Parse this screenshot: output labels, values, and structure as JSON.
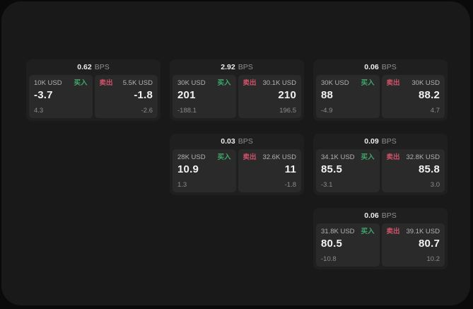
{
  "colors": {
    "window_bg": "#191919",
    "card_bg": "#1f1f1f",
    "panel_bg": "#2a2a2a",
    "buy_green": "#40a86c",
    "sell_red": "#ce5268"
  },
  "cards": [
    {
      "col": 1,
      "row": 1,
      "bps_value": "0.62",
      "bps_unit": "BPS",
      "buy": {
        "size": "10K USD",
        "side_label": "买入",
        "price": "-3.7",
        "delta": "4.3"
      },
      "sell": {
        "side_label": "卖出",
        "size": "5.5K USD",
        "price": "-1.8",
        "delta": "-2.6"
      }
    },
    {
      "col": 2,
      "row": 1,
      "bps_value": "2.92",
      "bps_unit": "BPS",
      "buy": {
        "size": "30K USD",
        "side_label": "买入",
        "price": "201",
        "delta": "-188.1"
      },
      "sell": {
        "side_label": "卖出",
        "size": "30.1K USD",
        "price": "210",
        "delta": "196.5"
      }
    },
    {
      "col": 3,
      "row": 1,
      "bps_value": "0.06",
      "bps_unit": "BPS",
      "buy": {
        "size": "30K USD",
        "side_label": "买入",
        "price": "88",
        "delta": "-4.9"
      },
      "sell": {
        "side_label": "卖出",
        "size": "30K USD",
        "price": "88.2",
        "delta": "4.7"
      }
    },
    {
      "col": 2,
      "row": 2,
      "bps_value": "0.03",
      "bps_unit": "BPS",
      "buy": {
        "size": "28K USD",
        "side_label": "买入",
        "price": "10.9",
        "delta": "1.3"
      },
      "sell": {
        "side_label": "卖出",
        "size": "32.6K USD",
        "price": "11",
        "delta": "-1.8"
      }
    },
    {
      "col": 3,
      "row": 2,
      "bps_value": "0.09",
      "bps_unit": "BPS",
      "buy": {
        "size": "34.1K USD",
        "side_label": "买入",
        "price": "85.5",
        "delta": "-3.1"
      },
      "sell": {
        "side_label": "卖出",
        "size": "32.8K USD",
        "price": "85.8",
        "delta": "3.0"
      }
    },
    {
      "col": 3,
      "row": 3,
      "bps_value": "0.06",
      "bps_unit": "BPS",
      "buy": {
        "size": "31.8K USD",
        "side_label": "买入",
        "price": "80.5",
        "delta": "-10.8"
      },
      "sell": {
        "side_label": "卖出",
        "size": "39.1K USD",
        "price": "80.7",
        "delta": "10.2"
      }
    }
  ]
}
